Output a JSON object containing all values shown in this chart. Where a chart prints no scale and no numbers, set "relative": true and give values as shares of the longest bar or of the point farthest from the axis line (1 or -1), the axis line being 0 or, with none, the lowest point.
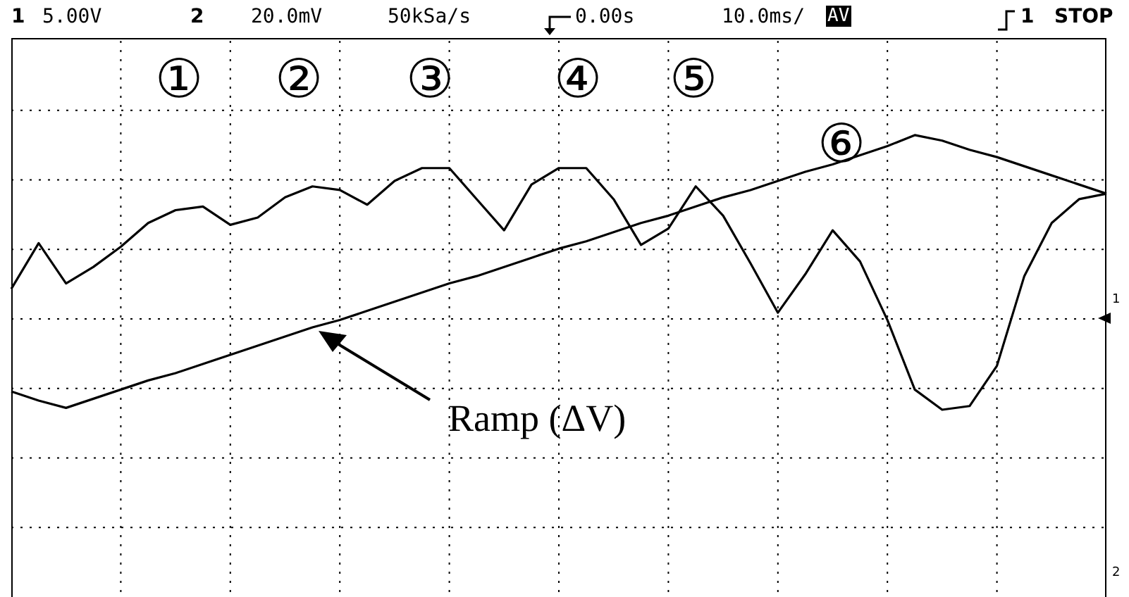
{
  "chart_data": {
    "type": "line",
    "relative": true,
    "grid": true,
    "categories": [
      null,
      null,
      null,
      null,
      null,
      null,
      null,
      null,
      null,
      null,
      null,
      null,
      null,
      null,
      null,
      null,
      null,
      null,
      null,
      null,
      null,
      null,
      null,
      null,
      null,
      null,
      null,
      null,
      null,
      null,
      null,
      null,
      null,
      null,
      null,
      null,
      null,
      null,
      null,
      null,
      null
    ],
    "series": [
      {
        "color": "#000000",
        "values": [
          0.16,
          0.41,
          0.19,
          0.28,
          0.39,
          0.52,
          0.59,
          0.61,
          0.51,
          0.55,
          0.66,
          0.72,
          0.7,
          0.62,
          0.75,
          0.82,
          0.82,
          0.65,
          0.48,
          0.73,
          0.82,
          0.82,
          0.65,
          0.4,
          0.49,
          0.72,
          0.56,
          0.3,
          0.03,
          0.24,
          0.48,
          0.31,
          -0.01,
          -0.39,
          -0.5,
          -0.48,
          -0.26,
          0.23,
          0.52,
          0.65,
          0.68
        ]
      },
      {
        "color": "#000000",
        "values": [
          -0.4,
          -0.45,
          -0.49,
          -0.44,
          -0.39,
          -0.34,
          -0.3,
          -0.25,
          -0.2,
          -0.15,
          -0.1,
          -0.05,
          -0.01,
          0.04,
          0.09,
          0.14,
          0.19,
          0.23,
          0.28,
          0.33,
          0.38,
          0.42,
          0.47,
          0.52,
          0.56,
          0.61,
          0.66,
          0.7,
          0.75,
          0.8,
          0.84,
          0.89,
          0.94,
          1.0,
          0.97,
          0.92,
          0.88,
          0.83,
          0.78,
          0.73,
          0.68
        ]
      }
    ],
    "annotations": [
      "1",
      "5.00V",
      "2",
      "20.0mV",
      "50kSa/s",
      "0.00s",
      "10.0ms/",
      "AV",
      "1",
      "STOP",
      "①",
      "②",
      "③",
      "④",
      "⑤",
      "⑥",
      "Ramp (ΔV)",
      "1",
      "2"
    ]
  }
}
